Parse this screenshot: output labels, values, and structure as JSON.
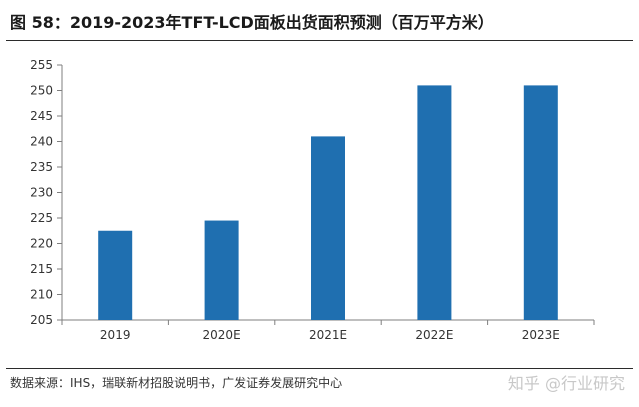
{
  "header": {
    "title": "图 58：2019-2023年TFT-LCD面板出货面积预测（百万平方米）"
  },
  "footer": {
    "source": "数据来源：IHS，瑞联新材招股说明书，广发证券发展研究中心",
    "watermark": "知乎 @行业研究"
  },
  "colors": {
    "bar": "#1f6fb0",
    "axis": "#7f7f7f"
  },
  "chart_data": {
    "type": "bar",
    "categories": [
      "2019",
      "2020E",
      "2021E",
      "2022E",
      "2023E"
    ],
    "values": [
      222.5,
      224.5,
      241,
      251,
      251
    ],
    "ylim": [
      205,
      255
    ],
    "yticks": [
      205,
      210,
      215,
      220,
      225,
      230,
      235,
      240,
      245,
      250,
      255
    ],
    "grid": false,
    "legend": "none"
  }
}
